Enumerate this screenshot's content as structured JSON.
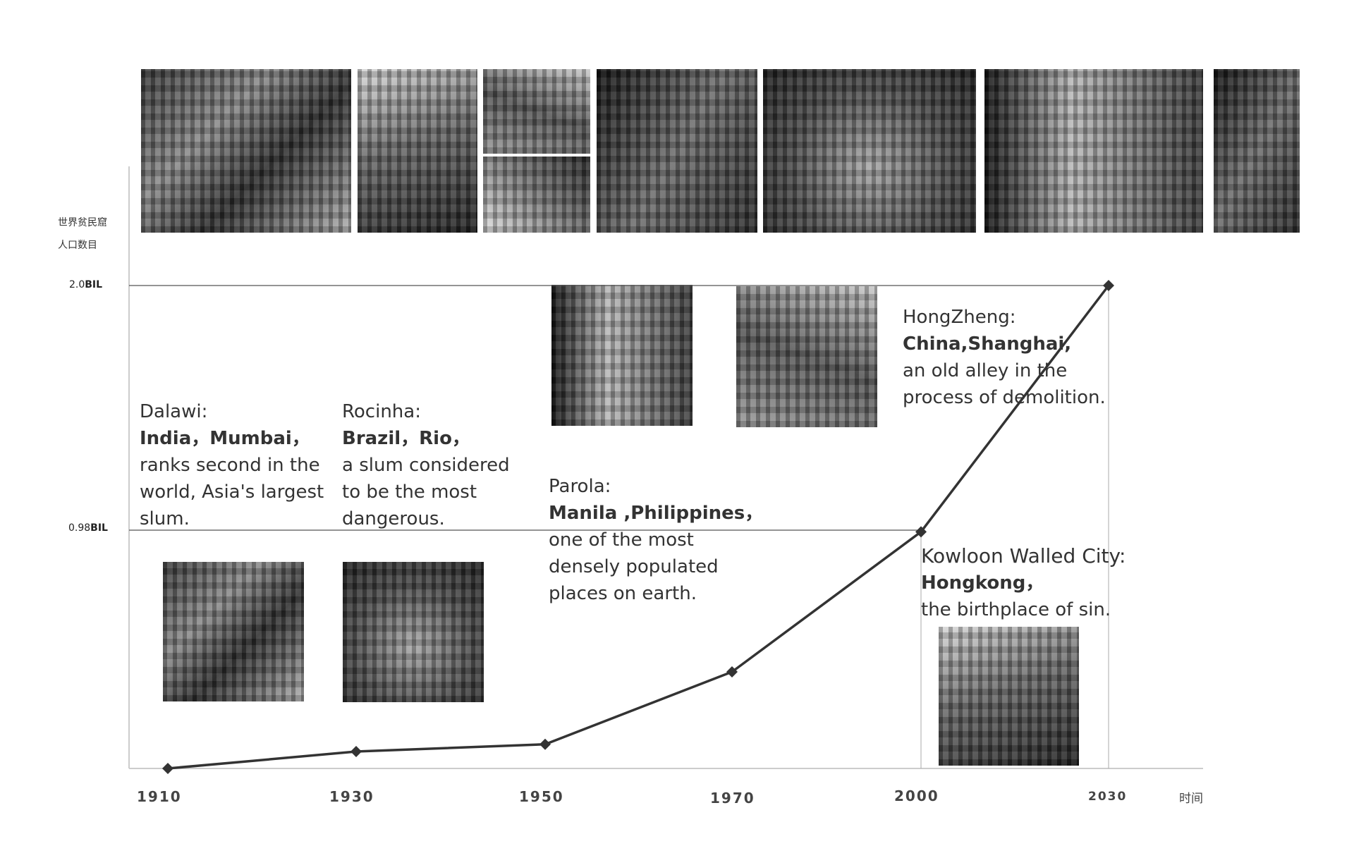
{
  "chart_data": {
    "type": "line",
    "ylabel_lines": [
      "世界贫民窟",
      "人口数目"
    ],
    "xlabel": "时间",
    "categories": [
      "1910",
      "1930",
      "1950",
      "1970",
      "2000",
      "2030"
    ],
    "y_ticks": [
      {
        "value": 0.98,
        "num": "0.98",
        "unit": "BIL"
      },
      {
        "value": 2.0,
        "num": "2.0",
        "unit": "BIL"
      }
    ],
    "series": [
      {
        "values": [
          0.0,
          0.07,
          0.1,
          0.4,
          0.98,
          2.0
        ]
      }
    ],
    "ylim": [
      0,
      2.0
    ],
    "grid": "horizontal lines at labeled ticks",
    "annotations": [
      {
        "name": "Dalawi:",
        "location": "India，Mumbai，",
        "desc": [
          "ranks second in the",
          "world, Asia's largest",
          "slum."
        ]
      },
      {
        "name": "Rocinha:",
        "location": "Brazil，Rio，",
        "desc": [
          "a slum considered",
          "to be the most",
          "dangerous."
        ]
      },
      {
        "name": "Parola:",
        "location": "Manila ,Philippines，",
        "desc": [
          "one of the most",
          "densely populated",
          "places on earth."
        ]
      },
      {
        "name": "HongZheng:",
        "location": "China,Shanghai,",
        "desc": [
          "an old alley in the",
          "process of demolition."
        ]
      },
      {
        "name": "Kowloon Walled City:",
        "location": "Hongkong，",
        "desc": [
          "the birthplace of sin."
        ]
      }
    ]
  },
  "colors": {
    "line": "#333333",
    "axis": "#cccccc",
    "gridline": "#555555",
    "text": "#333333"
  }
}
